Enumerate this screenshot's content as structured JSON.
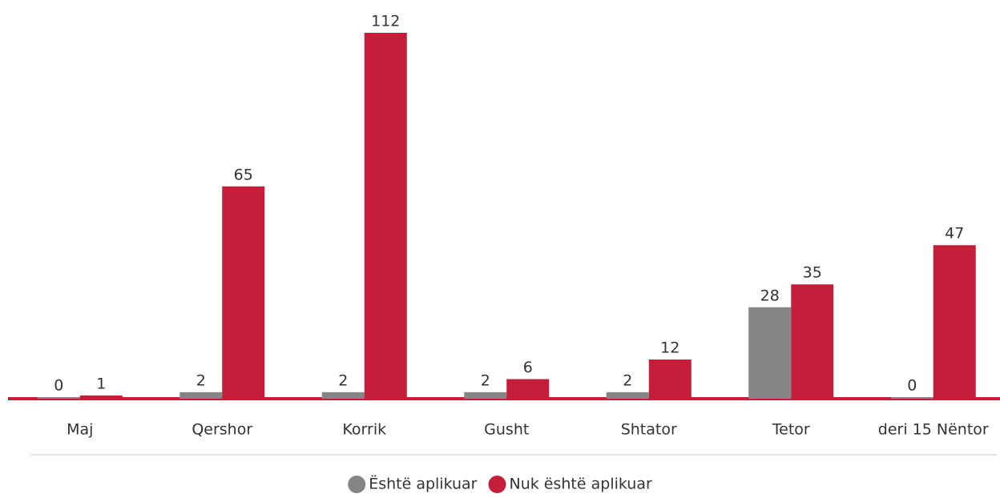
{
  "chart_data": {
    "type": "bar",
    "categories": [
      "Maj",
      "Qershor",
      "Korrik",
      "Gusht",
      "Shtator",
      "Tetor",
      "deri 15 Nëntor"
    ],
    "series": [
      {
        "name": "Është aplikuar",
        "color": "#858585",
        "values": [
          0,
          2,
          2,
          2,
          2,
          28,
          0
        ]
      },
      {
        "name": "Nuk është aplikuar",
        "color": "#c41e3a",
        "values": [
          1,
          65,
          112,
          6,
          12,
          35,
          47
        ]
      }
    ],
    "legend": "bottom"
  }
}
